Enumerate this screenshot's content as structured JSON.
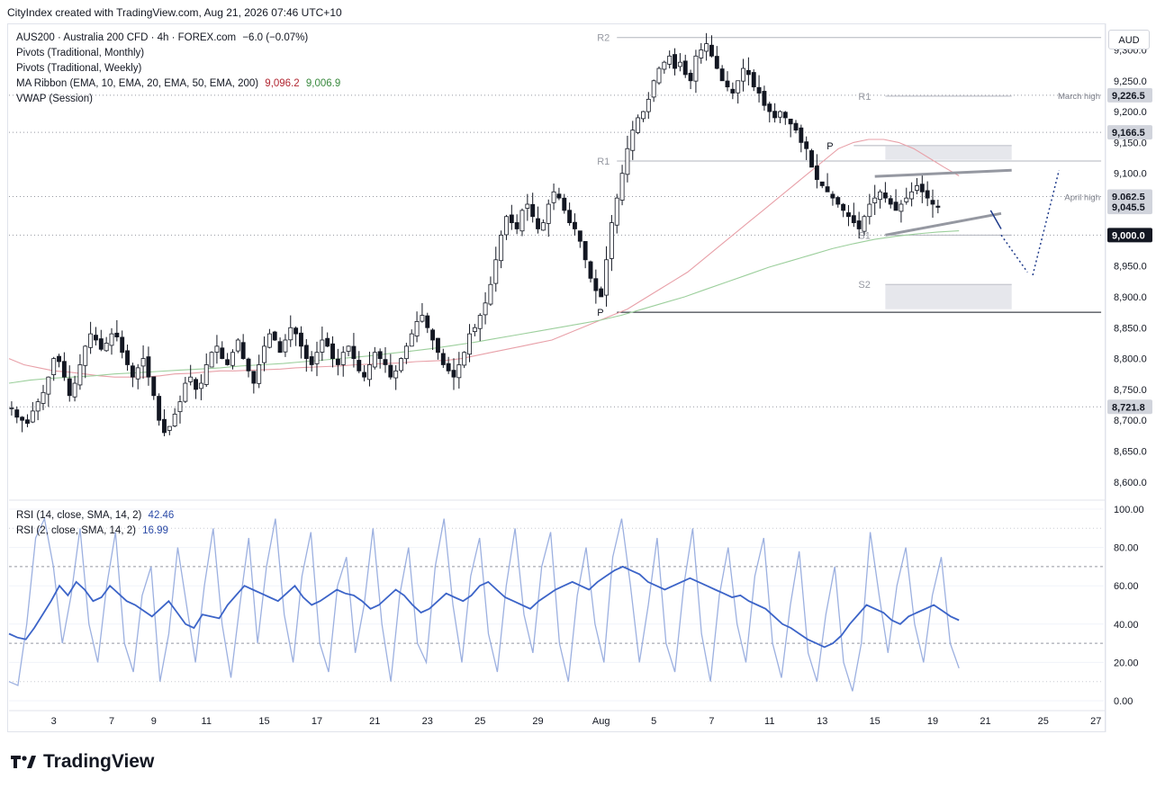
{
  "header": {
    "attribution": "CityIndex created with TradingView.com, Aug 21, 2026 07:46 UTC+10"
  },
  "legend": {
    "symbol": "AUS200 · Australia 200 CFD · 4h · FOREX.com",
    "change": "−6.0 (−0.07%)",
    "pivots_monthly": "Pivots (Traditional, Monthly)",
    "pivots_weekly": "Pivots (Traditional, Weekly)",
    "ma_ribbon": "MA Ribbon (EMA, 10, EMA, 20, EMA, 50, EMA, 200)",
    "ma_value_1": "9,096.2",
    "ma_value_2": "9,006.9",
    "vwap": "VWAP (Session)"
  },
  "rsi_legend": {
    "rsi14": "RSI (14, close, SMA, 14, 2)",
    "rsi14_value": "42.46",
    "rsi2": "RSI (2, close, SMA, 14, 2)",
    "rsi2_value": "16.99"
  },
  "currency_button": "AUD",
  "footer": {
    "brand": "TradingView"
  },
  "colors": {
    "up": "#131722",
    "down": "#131722",
    "ema50": "#e8a0a8",
    "ema200": "#9ccf9c",
    "rsi14": "#3c64c8",
    "rsi2": "#9cb0e0",
    "label_dark": "#131722",
    "label_grey": "#d1d4dc"
  },
  "chart_data": [
    {
      "type": "candlestick",
      "ylim": [
        8575,
        9340
      ],
      "yticks": [
        8600,
        8650,
        8700,
        8750,
        8800,
        8850,
        8900,
        8950,
        9000,
        9050,
        9100,
        9150,
        9200,
        9250,
        9300
      ],
      "ytick_labels": [
        "8,600.0",
        "8,650.0",
        "8,700.0",
        "8,750.0",
        "8,800.0",
        "8,850.0",
        "8,900.0",
        "8,950.0",
        "9,000.0",
        "9,050.0",
        "9,100.0",
        "9,150.0",
        "9,200.0",
        "9,250.0",
        "9,300.0"
      ],
      "xtick_labels": [
        "3",
        "7",
        "9",
        "11",
        "15",
        "17",
        "21",
        "23",
        "25",
        "29",
        "Aug",
        "5",
        "7",
        "11",
        "13",
        "15",
        "19",
        "21",
        "25",
        "27"
      ],
      "xtick_bars": [
        8,
        19,
        27,
        37,
        48,
        58,
        69,
        79,
        89,
        100,
        112,
        122,
        133,
        144,
        154,
        164,
        175,
        185,
        196,
        206
      ],
      "bars_total_slots": 208,
      "price_labels": [
        {
          "value": 9226.5,
          "text": "9,226.5",
          "style": "grey"
        },
        {
          "value": 9166.5,
          "text": "9,166.5",
          "style": "grey"
        },
        {
          "value": 9062.5,
          "text": "9,062.5",
          "style": "grey"
        },
        {
          "value": 9045.5,
          "text": "9,045.5",
          "style": "grey"
        },
        {
          "value": 9000.0,
          "text": "9,000.0",
          "style": "dark"
        },
        {
          "value": 8721.8,
          "text": "8,721.8",
          "style": "grey"
        }
      ],
      "levels": [
        {
          "name": "R2",
          "value": 9320,
          "from_bar": 115,
          "to_bar": 208,
          "label": "R2"
        },
        {
          "name": "R1 monthly",
          "value": 9120,
          "from_bar": 115,
          "to_bar": 208,
          "label": "R1"
        },
        {
          "name": "P monthly",
          "value": 8875,
          "from_bar": 115,
          "to_bar": 208,
          "label": "P"
        },
        {
          "name": "R1 weekly",
          "value": 9225,
          "from_bar": 166,
          "to_bar": 190,
          "label": "R1"
        },
        {
          "name": "P weekly",
          "value": 9145,
          "from_bar": 160,
          "to_bar": 190,
          "label": "P"
        },
        {
          "name": "S1 weekly",
          "value": 9000,
          "from_bar": 166,
          "to_bar": 190,
          "label": "S1"
        },
        {
          "name": "S2 weekly",
          "value": 8920,
          "from_bar": 166,
          "to_bar": 190,
          "label": "S2"
        }
      ],
      "annotations": [
        {
          "text": "March high",
          "value": 9226.5
        },
        {
          "text": "April high",
          "value": 9062.5
        }
      ],
      "dotted_levels": [
        9226.5,
        9166.5,
        9062.5,
        9000.0,
        8721.8
      ],
      "close_path": [
        8720,
        8705,
        8700,
        8695,
        8715,
        8730,
        8745,
        8770,
        8800,
        8795,
        8770,
        8740,
        8760,
        8790,
        8820,
        8840,
        8830,
        8815,
        8825,
        8840,
        8835,
        8810,
        8790,
        8770,
        8785,
        8800,
        8770,
        8740,
        8700,
        8680,
        8690,
        8710,
        8730,
        8760,
        8770,
        8750,
        8760,
        8790,
        8810,
        8820,
        8800,
        8790,
        8810,
        8830,
        8800,
        8780,
        8760,
        8790,
        8820,
        8840,
        8830,
        8810,
        8830,
        8850,
        8840,
        8820,
        8800,
        8790,
        8810,
        8830,
        8820,
        8800,
        8790,
        8810,
        8820,
        8800,
        8780,
        8770,
        8790,
        8810,
        8800,
        8790,
        8770,
        8780,
        8800,
        8820,
        8840,
        8860,
        8870,
        8850,
        8830,
        8810,
        8790,
        8780,
        8770,
        8790,
        8810,
        8840,
        8850,
        8870,
        8890,
        8920,
        8960,
        9000,
        9030,
        9020,
        9010,
        9040,
        9050,
        9030,
        9010,
        9020,
        9050,
        9070,
        9060,
        9040,
        9020,
        9010,
        8990,
        8960,
        8930,
        8910,
        8900,
        8960,
        9020,
        9060,
        9100,
        9140,
        9170,
        9190,
        9200,
        9220,
        9250,
        9270,
        9280,
        9290,
        9270,
        9280,
        9260,
        9250,
        9290,
        9300,
        9310,
        9290,
        9270,
        9250,
        9240,
        9230,
        9250,
        9270,
        9260,
        9240,
        9230,
        9210,
        9200,
        9190,
        9200,
        9190,
        9180,
        9170,
        9150,
        9140,
        9110,
        9090,
        9080,
        9070,
        9060,
        9050,
        9040,
        9030,
        9020,
        9010,
        9030,
        9050,
        9060,
        9070,
        9060,
        9050,
        9040,
        9050,
        9060,
        9070,
        9080,
        9070,
        9060,
        9050,
        9045
      ],
      "ema50": [
        8800,
        8790,
        8785,
        8780,
        8778,
        8775,
        8772,
        8770,
        8770,
        8770,
        8772,
        8775,
        8776,
        8778,
        8780,
        8780,
        8781,
        8782,
        8783,
        8785,
        8786,
        8787,
        8788,
        8790,
        8791,
        8792,
        8793,
        8795,
        8796,
        8797,
        8800,
        8805,
        8810,
        8815,
        8820,
        8825,
        8830,
        8840,
        8850,
        8860,
        8870,
        8880,
        8895,
        8910,
        8925,
        8940,
        8960,
        8980,
        9000,
        9020,
        9040,
        9060,
        9080,
        9100,
        9120,
        9140,
        9150,
        9155,
        9155,
        9150,
        9140,
        9125,
        9110,
        9096
      ],
      "ema200": [
        8760,
        8765,
        8768,
        8770,
        8772,
        8775,
        8777,
        8779,
        8781,
        8783,
        8785,
        8788,
        8790,
        8792,
        8795,
        8798,
        8801,
        8804,
        8808,
        8812,
        8816,
        8821,
        8826,
        8832,
        8838,
        8844,
        8850,
        8856,
        8862,
        8870,
        8880,
        8890,
        8900,
        8912,
        8924,
        8936,
        8948,
        8958,
        8968,
        8978,
        8986,
        8993,
        8998,
        9002,
        9005,
        9006.9
      ]
    },
    {
      "type": "line",
      "name": "RSI",
      "ylim": [
        0,
        100
      ],
      "yticks": [
        0,
        20,
        40,
        60,
        80,
        100
      ],
      "ytick_labels": [
        "0.00",
        "20.00",
        "40.00",
        "60.00",
        "80.00",
        "100.00"
      ],
      "dashed_levels": [
        30,
        70
      ],
      "dotted_levels": [
        10,
        90
      ],
      "rsi14_points": [
        35,
        33,
        32,
        38,
        45,
        52,
        60,
        55,
        62,
        58,
        52,
        54,
        60,
        56,
        52,
        50,
        47,
        44,
        48,
        52,
        46,
        40,
        38,
        45,
        44,
        43,
        50,
        55,
        60,
        58,
        56,
        54,
        52,
        56,
        60,
        54,
        50,
        52,
        55,
        58,
        56,
        55,
        52,
        48,
        50,
        54,
        58,
        55,
        50,
        46,
        48,
        52,
        56,
        54,
        52,
        55,
        60,
        62,
        58,
        54,
        52,
        50,
        48,
        52,
        55,
        58,
        60,
        62,
        60,
        58,
        62,
        65,
        68,
        70,
        68,
        66,
        62,
        60,
        58,
        60,
        62,
        64,
        62,
        60,
        58,
        56,
        54,
        55,
        52,
        50,
        48,
        44,
        40,
        38,
        35,
        32,
        30,
        28,
        30,
        34,
        40,
        45,
        50,
        48,
        46,
        42,
        40,
        44,
        46,
        48,
        50,
        47,
        44,
        42
      ],
      "rsi2_points": [
        10,
        8,
        40,
        85,
        95,
        70,
        30,
        55,
        90,
        40,
        20,
        60,
        88,
        30,
        15,
        55,
        70,
        10,
        35,
        80,
        50,
        20,
        60,
        90,
        40,
        12,
        50,
        85,
        30,
        70,
        95,
        45,
        20,
        65,
        88,
        30,
        15,
        60,
        75,
        25,
        50,
        90,
        40,
        10,
        55,
        80,
        30,
        20,
        70,
        95,
        50,
        20,
        65,
        85,
        35,
        15,
        60,
        90,
        45,
        25,
        70,
        88,
        30,
        10,
        55,
        80,
        40,
        20,
        75,
        95,
        60,
        20,
        50,
        85,
        30,
        15,
        60,
        90,
        35,
        10,
        55,
        80,
        40,
        20,
        65,
        85,
        30,
        12,
        50,
        78,
        25,
        10,
        45,
        70,
        20,
        5,
        30,
        88,
        55,
        25,
        60,
        80,
        40,
        20,
        55,
        75,
        30,
        17
      ]
    }
  ]
}
